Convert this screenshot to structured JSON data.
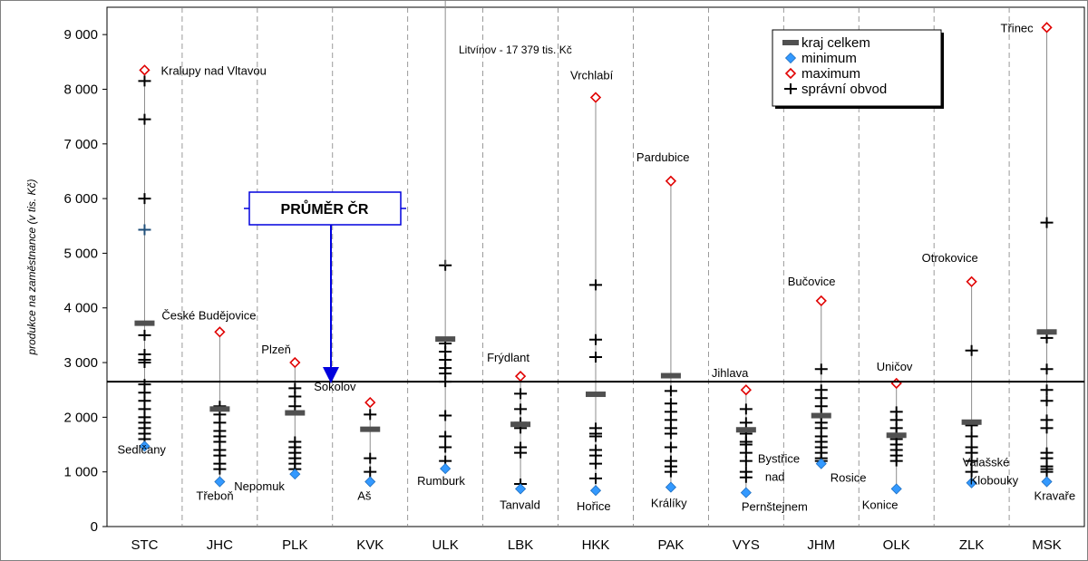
{
  "chart_data": {
    "type": "scatter",
    "title": "",
    "xlabel": "",
    "ylabel": "produkce na zaměstnance (v tis. Kč)",
    "ylim": [
      0,
      9500
    ],
    "yticks": [
      0,
      1000,
      2000,
      3000,
      4000,
      5000,
      6000,
      7000,
      8000,
      9000
    ],
    "ytick_labels": [
      "0",
      "1 000",
      "2 000",
      "3 000",
      "4 000",
      "5 000",
      "6 000",
      "7 000",
      "8 000",
      "9 000"
    ],
    "grid": {
      "horizontal": false,
      "vertical": true,
      "vertical_style": "dashed"
    },
    "legend": {
      "placement": "top-right",
      "entries": [
        "kraj celkem",
        "minimum",
        "maximum",
        "správní obvod"
      ]
    },
    "colors": {
      "maximum": "#e00000",
      "minimum": "#3399ff",
      "kraj": "#505050",
      "obvod": "#000000",
      "arrow": "#0000dd",
      "highlight": "#1f4e79"
    },
    "reference_line": {
      "label": "PRŮMĚR ČR",
      "value": 2650
    },
    "annotation": "Litvínov - 17 379 tis. Kč",
    "categories": [
      "STC",
      "JHC",
      "PLK",
      "KVK",
      "ULK",
      "LBK",
      "HKK",
      "PAK",
      "VYS",
      "JHM",
      "OLK",
      "ZLK",
      "MSK"
    ],
    "regions": [
      {
        "code": "STC",
        "kraj": 3720,
        "min": 1470,
        "max": 8350,
        "min_label": "Sedlčany",
        "max_label": "Kralupy nad Vltavou",
        "obvody": [
          8150,
          7450,
          6000,
          5430,
          3500,
          3150,
          3050,
          3000,
          2600,
          2450,
          2300,
          2150,
          2000,
          1900,
          1800,
          1700,
          1600
        ]
      },
      {
        "code": "JHC",
        "kraj": 2150,
        "min": 820,
        "max": 3560,
        "min_label": "Třeboň",
        "max_label": "České Budějovice",
        "obvody": [
          2200,
          2050,
          1900,
          1750,
          1650,
          1550,
          1400,
          1300,
          1150,
          1050
        ]
      },
      {
        "code": "PLK",
        "kraj": 2080,
        "min": 960,
        "max": 3000,
        "min_label": "Nepomuk",
        "max_label": "Plzeň",
        "obvody": [
          2530,
          2380,
          2200,
          1550,
          1450,
          1350,
          1250,
          1150,
          1050
        ]
      },
      {
        "code": "KVK",
        "kraj": 1780,
        "min": 820,
        "max": 2270,
        "min_label": "Aš",
        "max_label": "Sokolov",
        "obvody": [
          2050,
          1250,
          1000
        ]
      },
      {
        "code": "ULK",
        "kraj": 3430,
        "min": 1060,
        "max": null,
        "min_label": "Rumburk",
        "max_label": "",
        "obvody": [
          4780,
          3350,
          3200,
          3050,
          2900,
          2800,
          2650,
          2030,
          1650,
          1450,
          1200
        ]
      },
      {
        "code": "LBK",
        "kraj": 1870,
        "min": 690,
        "max": 2750,
        "min_label": "Tanvald",
        "max_label": "Frýdlant",
        "obvody": [
          2430,
          2150,
          1900,
          1800,
          1450,
          1350,
          780
        ]
      },
      {
        "code": "HKK",
        "kraj": 2420,
        "min": 660,
        "max": 7850,
        "min_label": "Hořice",
        "max_label": "Vrchlabí",
        "obvody": [
          4420,
          3420,
          3100,
          1800,
          1700,
          1650,
          1400,
          1300,
          1150,
          880
        ]
      },
      {
        "code": "PAK",
        "kraj": 2760,
        "min": 720,
        "max": 6320,
        "min_label": "Králíky",
        "max_label": "Pardubice",
        "obvody": [
          2480,
          2250,
          2100,
          1950,
          1800,
          1700,
          1450,
          1200,
          1100,
          1000
        ]
      },
      {
        "code": "VYS",
        "kraj": 1770,
        "min": 620,
        "max": 2500,
        "min_label": "Bystřice nad Pernštejnem",
        "max_label": "Jihlava",
        "obvody": [
          2150,
          1900,
          1700,
          1550,
          1500,
          1350,
          1200,
          1000,
          900
        ]
      },
      {
        "code": "JHM",
        "kraj": 2030,
        "min": 1150,
        "max": 4130,
        "min_label": "Rosice",
        "max_label": "Bučovice",
        "obvody": [
          2880,
          2500,
          2350,
          2200,
          2050,
          1900,
          1800,
          1650,
          1550,
          1450,
          1350,
          1250,
          1200
        ]
      },
      {
        "code": "OLK",
        "kraj": 1670,
        "min": 690,
        "max": 2620,
        "min_label": "Konice",
        "max_label": "Uničov",
        "obvody": [
          2100,
          1950,
          1800,
          1700,
          1600,
          1500,
          1400,
          1300,
          1200
        ]
      },
      {
        "code": "ZLK",
        "kraj": 1910,
        "min": 800,
        "max": 4480,
        "min_label": "Valašské Klobouky",
        "max_label": "Otrokovice",
        "obvody": [
          3220,
          1850,
          1650,
          1450,
          1350,
          1200,
          1000
        ]
      },
      {
        "code": "MSK",
        "kraj": 3560,
        "min": 820,
        "max": 9130,
        "min_label": "Kravaře",
        "max_label": "Třinec",
        "obvody": [
          5560,
          3450,
          2880,
          2500,
          2300,
          1950,
          1800,
          1350,
          1250,
          1100,
          1050,
          1000
        ]
      }
    ]
  }
}
